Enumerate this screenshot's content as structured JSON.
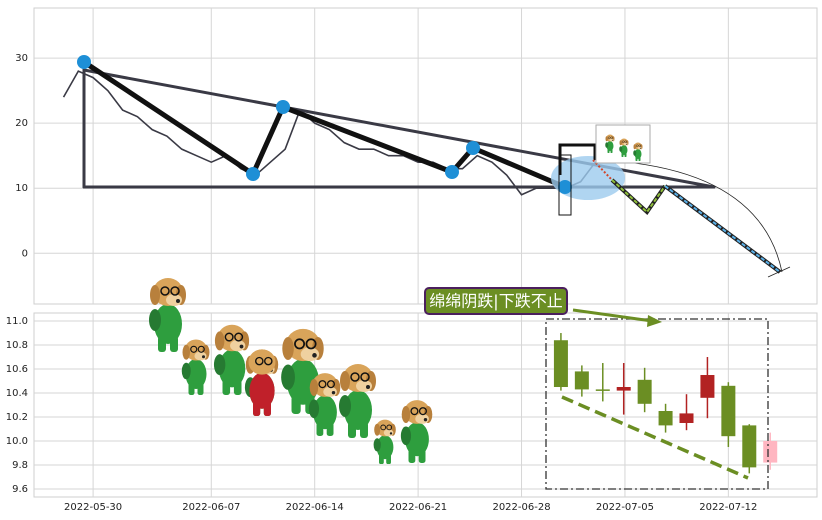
{
  "chart_data": [
    {
      "type": "line",
      "x": [
        "2022-05-28",
        "2022-05-29",
        "2022-05-30",
        "2022-05-31",
        "2022-06-01",
        "2022-06-02",
        "2022-06-03",
        "2022-06-04",
        "2022-06-05",
        "2022-06-06",
        "2022-06-07",
        "2022-06-08",
        "2022-06-09",
        "2022-06-10",
        "2022-06-11",
        "2022-06-12",
        "2022-06-13",
        "2022-06-14",
        "2022-06-15",
        "2022-06-16",
        "2022-06-17",
        "2022-06-18",
        "2022-06-19",
        "2022-06-20",
        "2022-06-21",
        "2022-06-22",
        "2022-06-23",
        "2022-06-24",
        "2022-06-25",
        "2022-06-26",
        "2022-06-27",
        "2022-06-28",
        "2022-06-29",
        "2022-06-30",
        "2022-07-01",
        "2022-07-02",
        "2022-07-03"
      ],
      "values": [
        24,
        28,
        27,
        25,
        22,
        21,
        19,
        18,
        16,
        15,
        14,
        15,
        13,
        12,
        14,
        16,
        22,
        20,
        19,
        17,
        16,
        16,
        15,
        15,
        14,
        14,
        13,
        13,
        15,
        14,
        12,
        9,
        10,
        10,
        10,
        11,
        14
      ],
      "color": "#3a3a45",
      "xlim": [
        "2022-05-26",
        "2022-07-18"
      ],
      "xticks": [
        "2022-05-30",
        "2022-06-07",
        "2022-06-14",
        "2022-06-21",
        "2022-06-28",
        "2022-07-05",
        "2022-07-12"
      ],
      "xtick_labels": false,
      "ylim": [
        -7.8,
        37.7
      ],
      "yticks": [
        0,
        10,
        20,
        30
      ],
      "grid": true
    },
    {
      "type": "candlestick",
      "x": [
        "2022-06-30T16",
        "2022-07-02T02",
        "2022-07-03T12",
        "2022-07-04T22",
        "2022-07-06T08",
        "2022-07-07T18",
        "2022-07-09T04",
        "2022-07-10T14",
        "2022-07-12T00",
        "2022-07-13T10",
        "2022-07-14T20"
      ],
      "open": [
        10.84,
        10.58,
        10.43,
        10.42,
        10.51,
        10.25,
        10.15,
        10.36,
        10.46,
        10.13,
        9.82
      ],
      "high": [
        10.9,
        10.63,
        10.65,
        10.65,
        10.61,
        10.31,
        10.39,
        10.7,
        10.49,
        10.14,
        10.07
      ],
      "low": [
        10.42,
        10.37,
        10.33,
        10.22,
        10.24,
        10.07,
        10.09,
        10.19,
        9.95,
        9.73,
        9.76
      ],
      "close": [
        10.45,
        10.43,
        10.42,
        10.45,
        10.31,
        10.13,
        10.23,
        10.55,
        10.04,
        9.78,
        10.0
      ],
      "colors": [
        "#6b8e23",
        "#6b8e23",
        "#6b8e23",
        "#b22222",
        "#6b8e23",
        "#6b8e23",
        "#b22222",
        "#b22222",
        "#6b8e23",
        "#6b8e23",
        "#ffb6c1"
      ],
      "xlim": [
        "2022-05-26",
        "2022-07-18"
      ],
      "xticks": [
        "2022-05-30",
        "2022-06-07",
        "2022-06-14",
        "2022-06-21",
        "2022-06-28",
        "2022-07-05",
        "2022-07-12"
      ],
      "xtick_labels": true,
      "ylim": [
        9.533,
        11.067
      ],
      "yticks": [
        9.6,
        9.8,
        {
          "value": 10,
          "label": "10.0"
        },
        10.2,
        10.4,
        10.6,
        10.8,
        {
          "value": 11,
          "label": "11.0"
        }
      ],
      "grid": true,
      "annotation": "绵绵阴跌|下跌不止"
    }
  ]
}
